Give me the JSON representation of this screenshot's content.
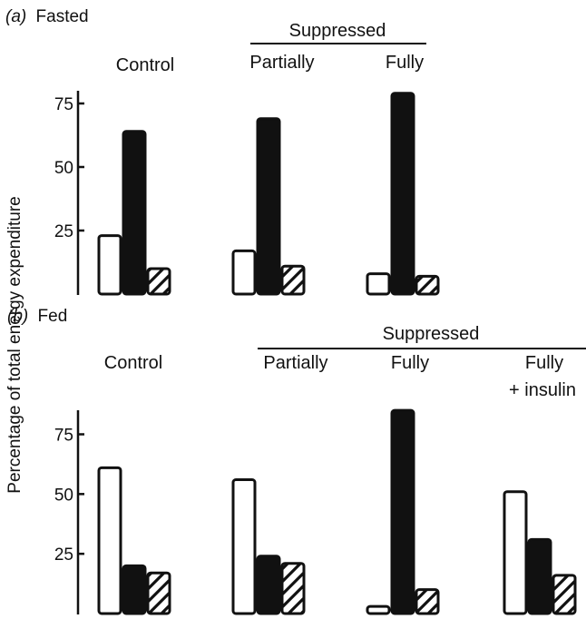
{
  "chart_data": [
    {
      "type": "bar",
      "panel_label_prefix": "(a)",
      "panel_label_text": "Fasted",
      "ylabel": "Percentage of total energy expenditure",
      "ylim": [
        0,
        80
      ],
      "yticks": [
        25,
        50,
        75
      ],
      "group_header": "Suppressed",
      "groups": [
        {
          "label": "Control",
          "values": [
            23,
            64,
            10
          ]
        },
        {
          "label": "Partially",
          "values": [
            17,
            69,
            11
          ]
        },
        {
          "label": "Fully",
          "values": [
            8,
            79,
            7
          ]
        }
      ],
      "bar_styles": [
        "open",
        "solid",
        "hatched"
      ]
    },
    {
      "type": "bar",
      "panel_label_prefix": "(b)",
      "panel_label_text": "Fed",
      "ylim": [
        0,
        90
      ],
      "yticks": [
        25,
        50,
        75
      ],
      "group_header": "Suppressed",
      "groups": [
        {
          "label": "Control",
          "values": [
            61,
            20,
            17
          ]
        },
        {
          "label": "Partially",
          "values": [
            56,
            24,
            21
          ]
        },
        {
          "label": "Fully",
          "values": [
            3,
            85,
            10
          ]
        },
        {
          "label_line1": "Fully",
          "label_line2": "+ insulin",
          "values": [
            51,
            31,
            16
          ]
        }
      ],
      "bar_styles": [
        "open",
        "solid",
        "hatched"
      ]
    }
  ],
  "colors": {
    "ink": "#111111",
    "paper": "#ffffff"
  }
}
